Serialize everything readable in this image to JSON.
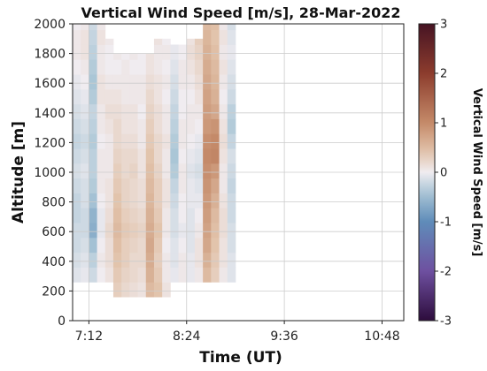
{
  "chart_data": {
    "type": "heatmap",
    "title": "Vertical Wind Speed [m/s], 28-Mar-2022",
    "xlabel": "Time (UT)",
    "ylabel": "Altitude [m]",
    "colorbar_label": "Vertical Wind Speed [m/s]",
    "x_tick_labels": [
      "7:12",
      "8:24",
      "9:36",
      "10:48"
    ],
    "x_tick_minutes": [
      432,
      504,
      576,
      648
    ],
    "xlim_minutes": [
      420,
      664
    ],
    "y_ticks": [
      0,
      200,
      400,
      600,
      800,
      1000,
      1200,
      1400,
      1600,
      1800,
      2000
    ],
    "ylim": [
      0,
      2000
    ],
    "clim": [
      -3,
      3
    ],
    "colorbar_ticks": [
      3,
      2,
      1,
      0,
      -1,
      -2,
      -3
    ],
    "colormap": "diverging: -3 purple, -1 blue, 0 white, 1 orange-brown, 3 dark maroon",
    "grid": true,
    "time_start_minutes": 420,
    "time_step_minutes": 6,
    "altitude_bin_starts_m": [
      160,
      260,
      360,
      460,
      560,
      660,
      760,
      860,
      960,
      1060,
      1160,
      1260,
      1360,
      1460,
      1560,
      1660,
      1760,
      1860,
      1960
    ],
    "altitude_bin_height_m": 100,
    "columns": [
      {
        "ymin": 260,
        "ymax": 2000,
        "w": [
          -0.1,
          -0.15,
          -0.2,
          -0.2,
          -0.25,
          -0.25,
          -0.2,
          -0.15,
          -0.2,
          -0.25,
          -0.2,
          -0.15,
          -0.1,
          -0.05,
          0.0,
          0.05,
          0.05,
          0.0
        ]
      },
      {
        "ymin": 260,
        "ymax": 2000,
        "w": [
          -0.05,
          -0.1,
          -0.15,
          -0.2,
          -0.2,
          -0.15,
          -0.15,
          -0.1,
          -0.15,
          -0.2,
          -0.15,
          -0.1,
          -0.05,
          0.0,
          0.05,
          0.1,
          0.1,
          0.05
        ]
      },
      {
        "ymin": 260,
        "ymax": 2000,
        "w": [
          -0.2,
          -0.3,
          -0.45,
          -0.65,
          -0.6,
          -0.45,
          -0.35,
          -0.3,
          -0.3,
          -0.35,
          -0.3,
          -0.25,
          -0.35,
          -0.4,
          -0.35,
          -0.3,
          -0.25,
          -0.2
        ]
      },
      {
        "ymin": 260,
        "ymax": 2000,
        "w": [
          0.0,
          0.05,
          0.0,
          -0.05,
          -0.05,
          0.0,
          0.05,
          0.05,
          0.05,
          0.0,
          0.05,
          0.05,
          0.1,
          0.1,
          0.05,
          0.05,
          0.1,
          0.05
        ]
      },
      {
        "ymin": 260,
        "ymax": 1900,
        "w": [
          0.1,
          0.15,
          0.15,
          0.2,
          0.15,
          0.1,
          0.1,
          0.05,
          0.05,
          0.05,
          0.1,
          0.15,
          0.1,
          0.05,
          0.0,
          0.0,
          0.05
        ]
      },
      {
        "ymin": 160,
        "ymax": 1800,
        "w": [
          0.3,
          0.35,
          0.4,
          0.45,
          0.5,
          0.45,
          0.4,
          0.35,
          0.3,
          0.25,
          0.2,
          0.2,
          0.15,
          0.1,
          0.05,
          0.0,
          0.05
        ]
      },
      {
        "ymin": 160,
        "ymax": 1800,
        "w": [
          0.2,
          0.25,
          0.3,
          0.3,
          0.35,
          0.3,
          0.25,
          0.25,
          0.2,
          0.2,
          0.15,
          0.1,
          0.1,
          0.05,
          0.05,
          0.05,
          0.0
        ]
      },
      {
        "ymin": 160,
        "ymax": 1800,
        "w": [
          0.15,
          0.2,
          0.2,
          0.25,
          0.3,
          0.25,
          0.2,
          0.2,
          0.25,
          0.2,
          0.15,
          0.1,
          0.1,
          0.05,
          0.05,
          0.0,
          0.05
        ]
      },
      {
        "ymin": 160,
        "ymax": 1800,
        "w": [
          0.1,
          0.15,
          0.2,
          0.2,
          0.25,
          0.2,
          0.15,
          0.15,
          0.1,
          0.1,
          0.05,
          0.05,
          0.0,
          0.05,
          0.05,
          0.0,
          0.0
        ]
      },
      {
        "ymin": 160,
        "ymax": 1800,
        "w": [
          0.5,
          0.6,
          0.65,
          0.7,
          0.65,
          0.6,
          0.55,
          0.5,
          0.45,
          0.4,
          0.35,
          0.3,
          0.25,
          0.2,
          0.15,
          0.1,
          0.1
        ]
      },
      {
        "ymin": 160,
        "ymax": 1900,
        "w": [
          0.4,
          0.35,
          0.3,
          0.35,
          0.4,
          0.35,
          0.3,
          0.3,
          0.25,
          0.2,
          0.2,
          0.15,
          0.15,
          0.1,
          0.1,
          0.05,
          0.05,
          0.1
        ]
      },
      {
        "ymin": 160,
        "ymax": 1900,
        "w": [
          0.1,
          0.05,
          0.05,
          0.0,
          0.05,
          0.05,
          0.1,
          0.1,
          0.05,
          0.05,
          0.1,
          0.05,
          0.05,
          0.0,
          0.05,
          0.0,
          0.05,
          0.0
        ]
      },
      {
        "ymin": 260,
        "ymax": 1860,
        "w": [
          -0.05,
          -0.1,
          -0.1,
          -0.15,
          -0.15,
          -0.2,
          -0.25,
          -0.35,
          -0.4,
          -0.35,
          -0.3,
          -0.25,
          -0.2,
          -0.15,
          -0.1,
          -0.05
        ]
      },
      {
        "ymin": 260,
        "ymax": 1860,
        "w": [
          0.05,
          0.05,
          0.0,
          -0.05,
          0.0,
          0.0,
          0.05,
          0.05,
          0.0,
          0.05,
          0.05,
          0.0,
          0.0,
          0.05,
          0.05,
          0.0
        ]
      },
      {
        "ymin": 260,
        "ymax": 1900,
        "w": [
          -0.05,
          -0.05,
          -0.1,
          -0.1,
          -0.1,
          -0.05,
          -0.05,
          -0.1,
          -0.05,
          0.0,
          0.05,
          0.05,
          0.0,
          0.05,
          0.1,
          0.15,
          0.1
        ]
      },
      {
        "ymin": 260,
        "ymax": 1900,
        "w": [
          0.05,
          0.1,
          0.1,
          0.05,
          0.0,
          -0.05,
          -0.1,
          -0.15,
          -0.1,
          -0.05,
          0.0,
          0.05,
          0.1,
          0.15,
          0.2,
          0.25,
          0.3
        ]
      },
      {
        "ymin": 260,
        "ymax": 2000,
        "w": [
          0.5,
          0.6,
          0.7,
          0.75,
          0.8,
          0.85,
          0.9,
          0.95,
          1.0,
          0.95,
          0.85,
          0.8,
          0.75,
          0.7,
          0.65,
          0.6,
          0.55,
          0.5
        ]
      },
      {
        "ymin": 260,
        "ymax": 2000,
        "w": [
          0.3,
          0.35,
          0.4,
          0.45,
          0.5,
          0.6,
          0.7,
          0.85,
          1.05,
          1.0,
          0.9,
          0.7,
          0.6,
          0.55,
          0.5,
          0.45,
          0.4,
          0.45
        ]
      },
      {
        "ymin": 260,
        "ymax": 2000,
        "w": [
          0.05,
          0.1,
          0.1,
          0.15,
          0.15,
          0.1,
          0.05,
          0.05,
          0.1,
          0.15,
          0.1,
          0.05,
          0.0,
          0.05,
          0.1,
          0.05,
          0.1,
          0.05
        ]
      },
      {
        "ymin": 260,
        "ymax": 2000,
        "w": [
          -0.1,
          -0.1,
          -0.15,
          -0.15,
          -0.2,
          -0.2,
          -0.25,
          -0.2,
          -0.15,
          -0.25,
          -0.35,
          -0.3,
          -0.2,
          -0.15,
          -0.1,
          -0.05,
          -0.1,
          -0.15
        ]
      }
    ]
  }
}
